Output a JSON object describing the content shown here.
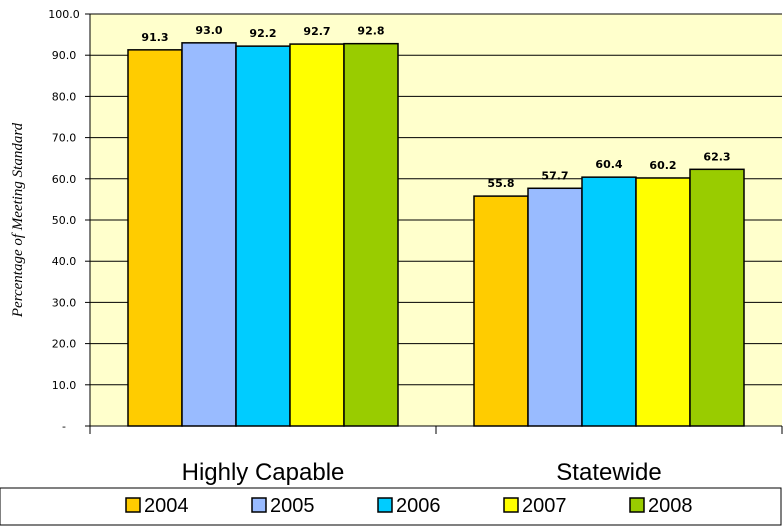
{
  "chart_data": {
    "type": "bar",
    "categories": [
      "Highly Capable",
      "Statewide"
    ],
    "series": [
      {
        "name": "2004",
        "color": "#FFCC00",
        "values": [
          91.3,
          55.8
        ],
        "labels": [
          "91.3",
          "55.8"
        ]
      },
      {
        "name": "2005",
        "color": "#99BBFF",
        "values": [
          93.0,
          57.7
        ],
        "labels": [
          "93.0",
          "57.7"
        ]
      },
      {
        "name": "2006",
        "color": "#00CCFF",
        "values": [
          92.2,
          60.4
        ],
        "labels": [
          "92.2",
          "60.4"
        ]
      },
      {
        "name": "2007",
        "color": "#FFFF00",
        "values": [
          92.7,
          60.2
        ],
        "labels": [
          "92.7",
          "60.2"
        ]
      },
      {
        "name": "2008",
        "color": "#99CC00",
        "values": [
          92.8,
          62.3
        ],
        "labels": [
          "92.8",
          "62.3"
        ]
      }
    ],
    "title": "",
    "xlabel": "",
    "ylabel": "Percentage of Meeting Standard",
    "ylim": [
      0,
      100
    ],
    "yticks": [
      0,
      10,
      20,
      30,
      40,
      50,
      60,
      70,
      80,
      90,
      100
    ],
    "ytick_labels": [
      "-",
      "10.0",
      "20.0",
      "30.0",
      "40.0",
      "50.0",
      "60.0",
      "70.0",
      "80.0",
      "90.0",
      "100.0"
    ],
    "grid": true,
    "legend_position": "bottom",
    "plot_background": "#FFFFCC"
  }
}
